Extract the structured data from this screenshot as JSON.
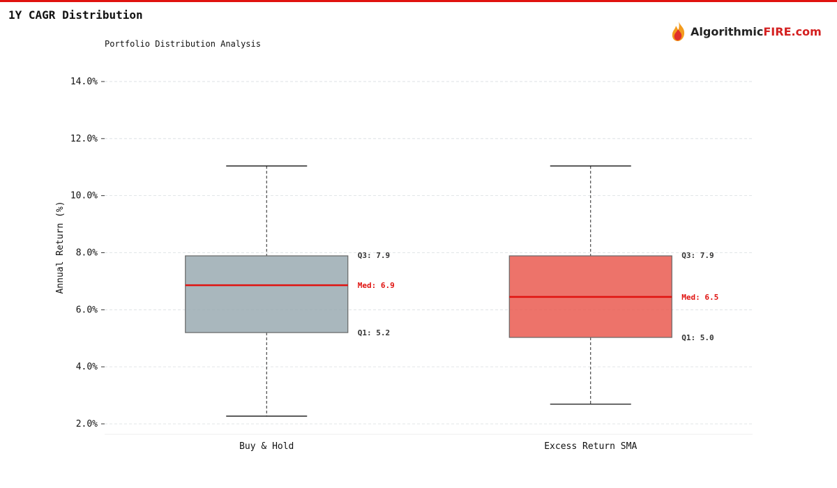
{
  "header": {
    "title": "1Y CAGR Distribution",
    "subtitle": "Portfolio Distribution Analysis"
  },
  "logo": {
    "text_main": "Algorithmic",
    "text_accent": "FIRE.com",
    "accent_color": "#d42020"
  },
  "chart_data": {
    "type": "box",
    "title": "",
    "xlabel": "",
    "ylabel": "Annual Return (%)",
    "ylim": [
      1.64,
      14.55
    ],
    "yticks": [
      2,
      4,
      6,
      8,
      10,
      12,
      14
    ],
    "ytick_labels": [
      "2.0%",
      "4.0%",
      "6.0%",
      "8.0%",
      "10.0%",
      "12.0%",
      "14.0%"
    ],
    "grid": true,
    "categories": [
      "Buy & Hold",
      "Excess Return SMA"
    ],
    "series": [
      {
        "category": "Buy & Hold",
        "whisker_low": 2.27,
        "q1": 5.2,
        "median": 6.86,
        "q3": 7.89,
        "whisker_high": 11.04,
        "color": "#9aaab2",
        "labels": {
          "q3": "Q3: 7.9",
          "median": "Med: 6.9",
          "q1": "Q1: 5.2"
        }
      },
      {
        "category": "Excess Return SMA",
        "whisker_low": 2.69,
        "q1": 5.03,
        "median": 6.45,
        "q3": 7.89,
        "whisker_high": 11.04,
        "color": "#ea5a50",
        "labels": {
          "q3": "Q3: 7.9",
          "median": "Med: 6.5",
          "q1": "Q1: 5.0"
        }
      }
    ],
    "median_color": "#e0120f"
  }
}
